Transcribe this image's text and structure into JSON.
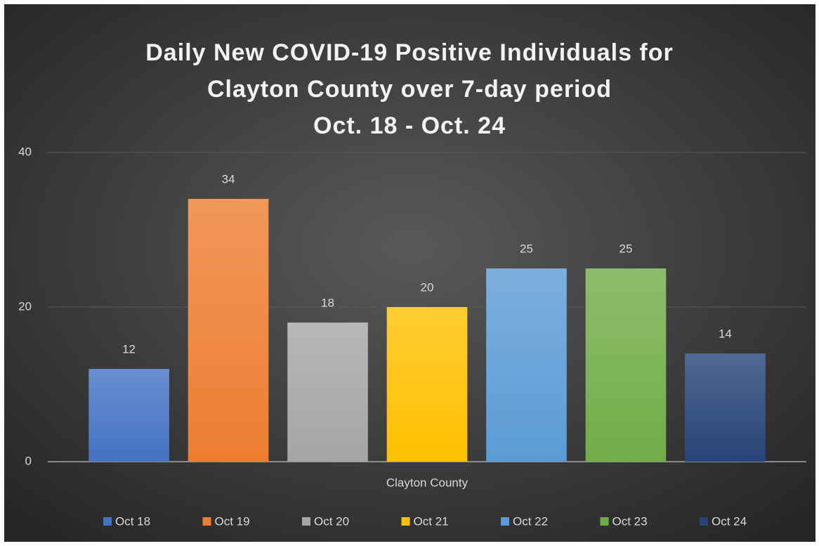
{
  "chart_data": {
    "type": "bar",
    "title": [
      "Daily New COVID-19 Positive Individuals for",
      "Clayton County over 7-day period",
      "Oct. 18 - Oct. 24"
    ],
    "categories": [
      "Clayton County"
    ],
    "series": [
      {
        "name": "Oct 18",
        "color": "#4472c4",
        "values": [
          12
        ]
      },
      {
        "name": "Oct 19",
        "color": "#ed7d31",
        "values": [
          34
        ]
      },
      {
        "name": "Oct 20",
        "color": "#a5a5a5",
        "values": [
          18
        ]
      },
      {
        "name": "Oct 21",
        "color": "#ffc000",
        "values": [
          20
        ]
      },
      {
        "name": "Oct 22",
        "color": "#5b9bd5",
        "values": [
          25
        ]
      },
      {
        "name": "Oct 23",
        "color": "#70ad47",
        "values": [
          25
        ]
      },
      {
        "name": "Oct 24",
        "color": "#264478",
        "values": [
          14
        ]
      }
    ],
    "ylim": [
      0,
      40
    ],
    "yticks": [
      0,
      20,
      40
    ],
    "grid": true,
    "legend": "bottom"
  }
}
